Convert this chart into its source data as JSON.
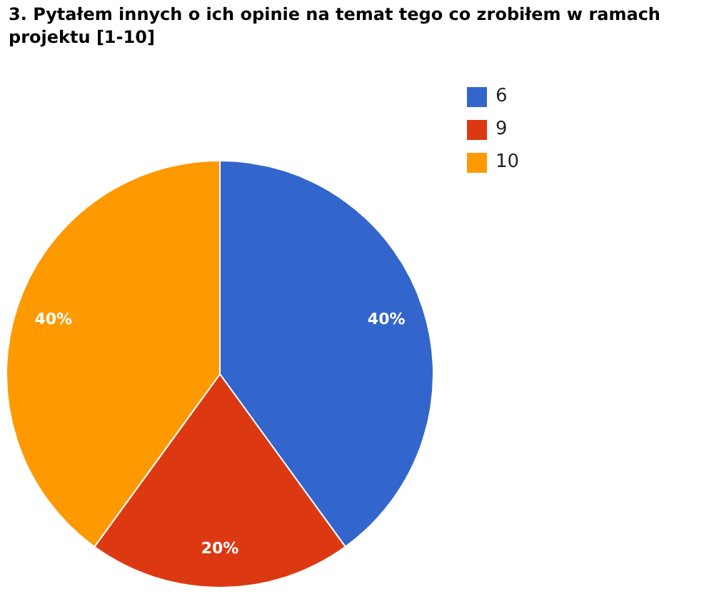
{
  "chart_data": {
    "type": "pie",
    "title": "3. Pytałem innych o ich opinie na temat tego co zrobiłem w ramach projektu [1-10]",
    "categories": [
      "6",
      "9",
      "10"
    ],
    "values": [
      40,
      20,
      40
    ],
    "colors": [
      "#3366cc",
      "#dc3912",
      "#ff9900"
    ],
    "value_labels": [
      "40%",
      "20%",
      "40%"
    ],
    "legend": "top right"
  }
}
